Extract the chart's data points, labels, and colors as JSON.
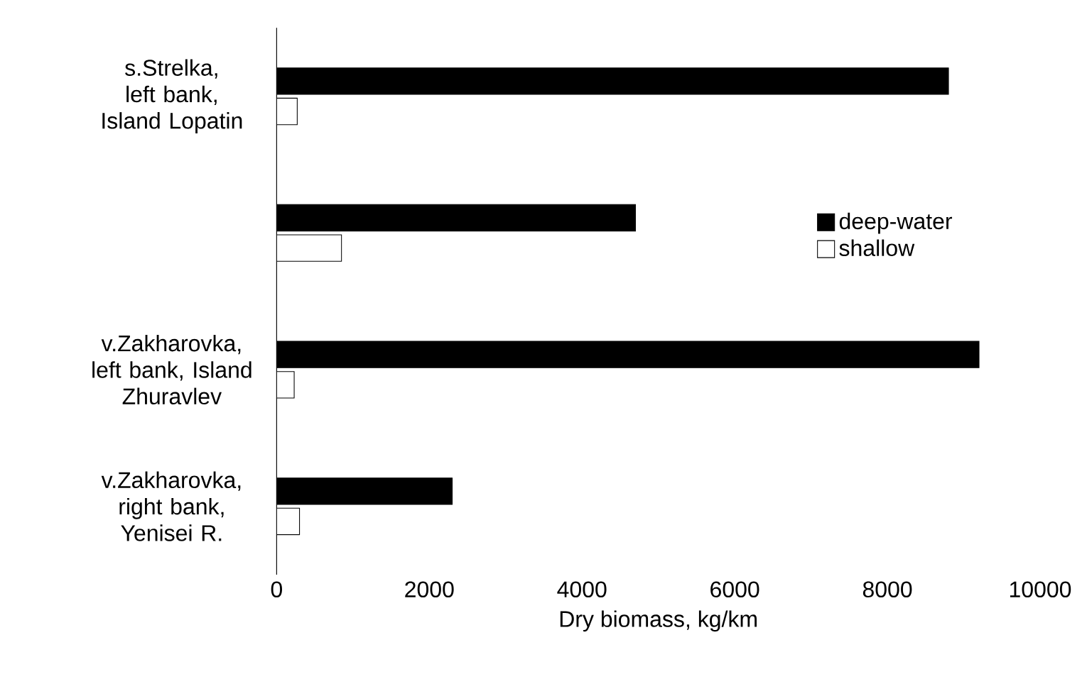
{
  "chart_data": {
    "type": "bar",
    "orientation": "horizontal",
    "xlabel": "Dry biomass, kg/km",
    "categories": [
      "s.Strelka, left bank, Island Lopatin",
      null,
      "v.Zakharovka, left bank, Island Zhuravlev",
      "v.Zakharovka, right bank, Yenisei R."
    ],
    "series": [
      {
        "name": "deep-water",
        "color": "#000000",
        "values": [
          8800,
          4700,
          9200,
          2300
        ]
      },
      {
        "name": "shallow",
        "color": "#ffffff",
        "values": [
          270,
          850,
          230,
          300
        ]
      }
    ],
    "xlim": [
      0,
      10000
    ],
    "xticks": [
      0,
      2000,
      4000,
      6000,
      8000,
      10000
    ],
    "legend": "right",
    "grid": false
  }
}
